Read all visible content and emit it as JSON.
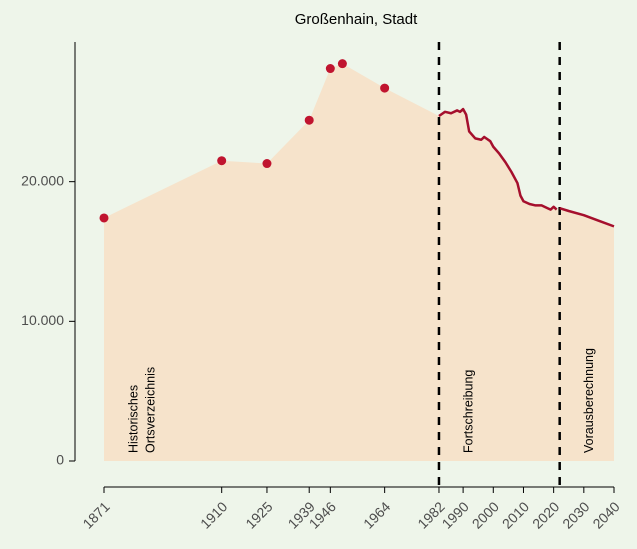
{
  "chart_data": {
    "type": "line",
    "title": "Großenhain, Stadt",
    "area_color": "#f6e3cb",
    "points": {
      "color": "#c0142f",
      "x": [
        1871,
        1910,
        1925,
        1939,
        1946,
        1950,
        1964
      ],
      "values": [
        17400,
        21500,
        21300,
        24400,
        28100,
        28450,
        26700
      ]
    },
    "series": [
      {
        "color": "#a50f2d",
        "x": [
          1982,
          1984,
          1986,
          1988,
          1989,
          1990,
          1991,
          1992,
          1994,
          1996,
          1997,
          1999,
          2000,
          2002,
          2004,
          2006,
          2008,
          2009,
          2010,
          2012,
          2014,
          2016,
          2018,
          2019,
          2020,
          2021
        ],
        "values": [
          24700,
          25000,
          24900,
          25100,
          25000,
          25200,
          24800,
          23600,
          23100,
          23000,
          23200,
          22900,
          22500,
          22000,
          21400,
          20700,
          19900,
          19000,
          18600,
          18400,
          18300,
          18300,
          18100,
          18000,
          18200,
          18000
        ]
      },
      {
        "color": "#a50f2d",
        "x": [
          2022,
          2025,
          2030,
          2035,
          2040
        ],
        "values": [
          18100,
          17900,
          17600,
          17200,
          16800
        ]
      }
    ],
    "annotations": [
      {
        "x": 1871,
        "lines": [
          "Historisches",
          "Ortsverzeichnis"
        ]
      },
      {
        "x": 1982,
        "lines": [
          "Fortschreibung"
        ],
        "dashed": true
      },
      {
        "x": 2022,
        "lines": [
          "Vorausberechnung"
        ],
        "dashed": true
      }
    ],
    "xlim": [
      1871,
      2040
    ],
    "xticks": [
      1871,
      1910,
      1925,
      1939,
      1946,
      1964,
      1982,
      1990,
      2000,
      2010,
      2020,
      2030,
      2040
    ],
    "ylim": [
      0,
      30000
    ],
    "yticks": [
      0,
      {
        "value": 10000,
        "label": "10.000"
      },
      {
        "value": 20000,
        "label": "20.000"
      }
    ]
  }
}
